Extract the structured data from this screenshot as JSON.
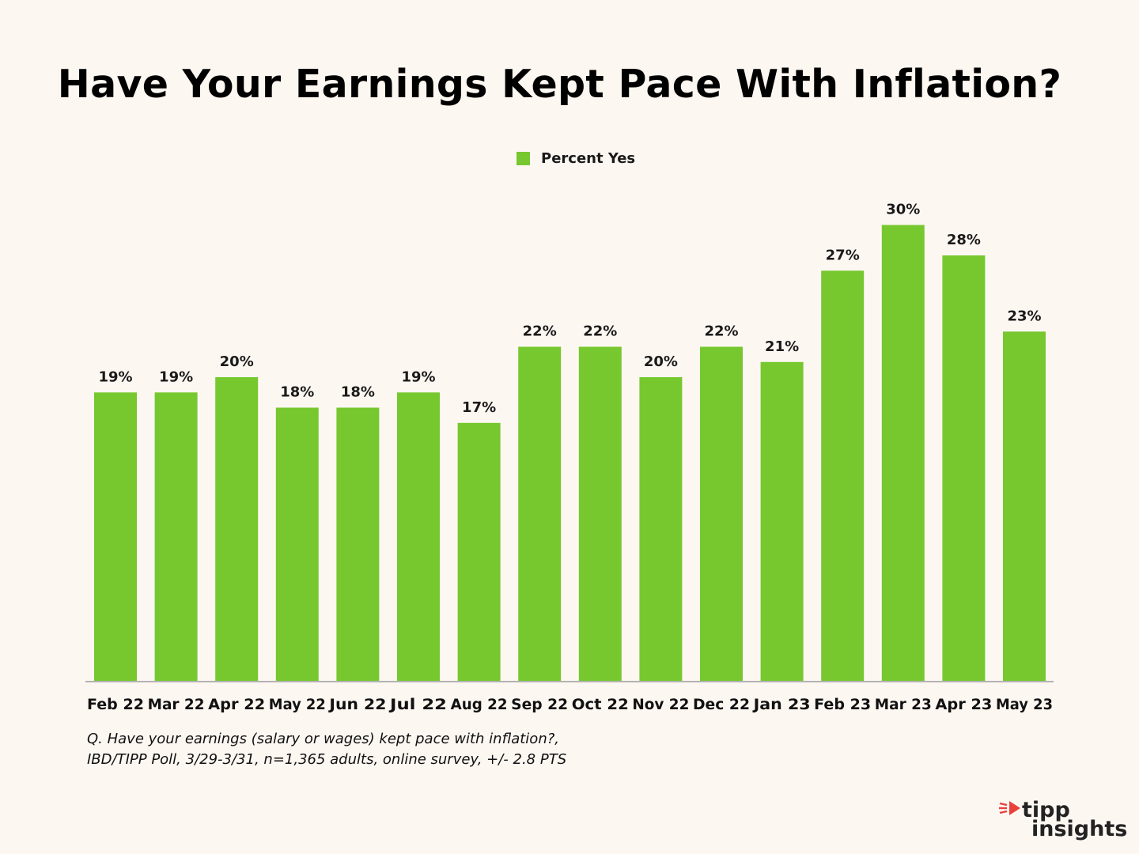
{
  "chart_data": {
    "type": "bar",
    "title": "Have Your Earnings Kept Pace With Inflation?",
    "categories": [
      "Feb 22",
      "Mar 22",
      "Apr 22",
      "May 22",
      "Jun 22",
      "Jul 22",
      "Aug 22",
      "Sep 22",
      "Oct 22",
      "Nov 22",
      "Dec 22",
      "Jan 23",
      "Feb 23",
      "Mar 23",
      "Apr 23",
      "May 23"
    ],
    "series": [
      {
        "name": "Percent Yes",
        "values": [
          19,
          19,
          20,
          18,
          18,
          19,
          17,
          22,
          22,
          20,
          22,
          21,
          27,
          30,
          28,
          23
        ],
        "labels": [
          "19%",
          "19%",
          "20%",
          "18%",
          "18%",
          "19%",
          "17%",
          "22%",
          "22%",
          "20%",
          "22%",
          "21%",
          "27%",
          "30%",
          "28%",
          "23%"
        ],
        "color": "#77c82f"
      }
    ],
    "ylim": [
      0,
      30
    ],
    "grid": false,
    "legend_position": "top-center"
  },
  "footnote": {
    "line1": "Q. Have your earnings (salary or wages) kept pace with inflation?,",
    "line2": "IBD/TIPP Poll, 3/29-3/31, n=1,365 adults, online survey, +/- 2.8 PTS"
  },
  "logo": {
    "word1": "tipp",
    "word2": "insights",
    "accent_color": "#e8413b"
  },
  "colors": {
    "background": "#fdf7f2",
    "axis": "#b3b3b3"
  }
}
